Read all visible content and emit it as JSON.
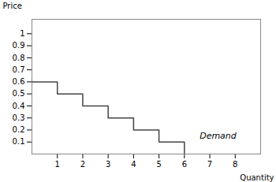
{
  "chart_data": {
    "type": "line",
    "x": [
      0,
      1,
      1,
      2,
      2,
      3,
      3,
      4,
      4,
      5,
      5,
      6,
      6
    ],
    "values": [
      0.6,
      0.6,
      0.5,
      0.5,
      0.4,
      0.4,
      0.3,
      0.3,
      0.2,
      0.2,
      0.1,
      0.1,
      0.0
    ],
    "color": "#444444",
    "xlabel": "Quantity",
    "ylabel": "Price",
    "xlim": [
      0,
      9.0
    ],
    "ylim": [
      0,
      1.12
    ],
    "xticks": [
      1,
      2,
      3,
      4,
      5,
      6,
      7,
      8
    ],
    "yticks": [
      0.1,
      0.2,
      0.3,
      0.4,
      0.5,
      0.6,
      0.7,
      0.8,
      0.9,
      1
    ],
    "grid": false,
    "annotations": [
      {
        "text": "Demand",
        "x": 6.6,
        "y": 0.13
      }
    ]
  }
}
